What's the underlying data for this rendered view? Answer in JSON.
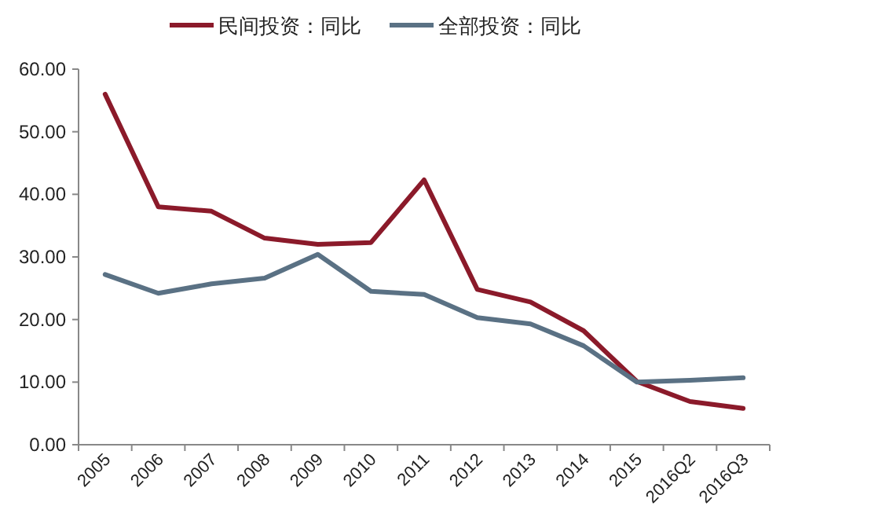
{
  "chart_data": {
    "type": "line",
    "categories": [
      "2005",
      "2006",
      "2007",
      "2008",
      "2009",
      "2010",
      "2011",
      "2012",
      "2013",
      "2014",
      "2015",
      "2016Q2",
      "2016Q3"
    ],
    "series": [
      {
        "name": "民间投资：同比",
        "color": "#8b1a2a",
        "values": [
          56,
          38,
          37.3,
          33,
          32,
          32.3,
          42.3,
          24.8,
          22.8,
          18.2,
          10.1,
          6.9,
          5.8
        ]
      },
      {
        "name": "全部投资：同比",
        "color": "#5a7184",
        "values": [
          27.2,
          24.2,
          25.7,
          26.6,
          30.4,
          24.5,
          24,
          20.3,
          19.3,
          15.8,
          10,
          10.3,
          10.7
        ]
      }
    ],
    "ylim": [
      0,
      60
    ],
    "yticks": [
      {
        "value": 0,
        "label": "0.00"
      },
      {
        "value": 10,
        "label": "10.00"
      },
      {
        "value": 20,
        "label": "20.00"
      },
      {
        "value": 30,
        "label": "30.00"
      },
      {
        "value": 40,
        "label": "40.00"
      },
      {
        "value": 50,
        "label": "50.00"
      },
      {
        "value": 60,
        "label": "60.00"
      }
    ],
    "grid": false,
    "legend": "top",
    "marker": "none",
    "line_style": "solid"
  }
}
